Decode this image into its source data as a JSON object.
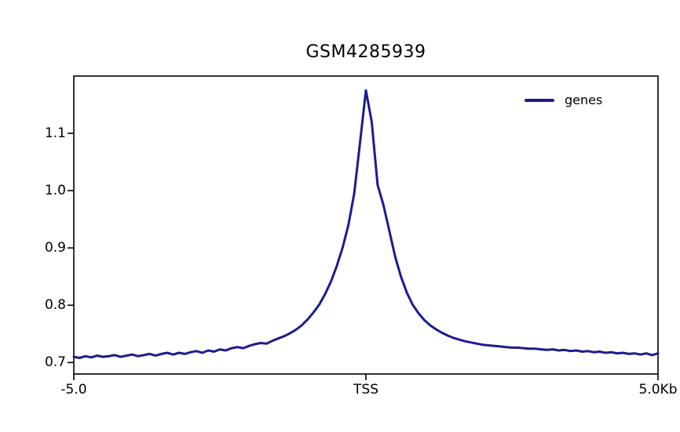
{
  "chart_data": {
    "type": "line",
    "title": "GSM4285939",
    "xlabel": "",
    "ylabel": "",
    "xlim": [
      -5.0,
      5.0
    ],
    "ylim": [
      0.68,
      1.2
    ],
    "grid": false,
    "legend_position": "upper-right",
    "xticks": [
      {
        "pos": -5.0,
        "label": "-5.0"
      },
      {
        "pos": 0.0,
        "label": "TSS"
      },
      {
        "pos": 5.0,
        "label": "5.0Kb"
      }
    ],
    "yticks": [
      {
        "pos": 0.7,
        "label": "0.7"
      },
      {
        "pos": 0.8,
        "label": "0.8"
      },
      {
        "pos": 0.9,
        "label": "0.9"
      },
      {
        "pos": 1.0,
        "label": "1.0"
      },
      {
        "pos": 1.1,
        "label": "1.1"
      }
    ],
    "series": [
      {
        "name": "genes",
        "color": "#1c1c8e",
        "x": [
          -5.0,
          -4.9,
          -4.8,
          -4.7,
          -4.6,
          -4.5,
          -4.4,
          -4.3,
          -4.2,
          -4.1,
          -4.0,
          -3.9,
          -3.8,
          -3.7,
          -3.6,
          -3.5,
          -3.4,
          -3.3,
          -3.2,
          -3.1,
          -3.0,
          -2.9,
          -2.8,
          -2.7,
          -2.6,
          -2.5,
          -2.4,
          -2.3,
          -2.2,
          -2.1,
          -2.0,
          -1.9,
          -1.8,
          -1.7,
          -1.6,
          -1.5,
          -1.4,
          -1.3,
          -1.2,
          -1.1,
          -1.0,
          -0.9,
          -0.8,
          -0.7,
          -0.6,
          -0.5,
          -0.4,
          -0.3,
          -0.2,
          -0.1,
          0.0,
          0.1,
          0.2,
          0.3,
          0.4,
          0.5,
          0.6,
          0.7,
          0.8,
          0.9,
          1.0,
          1.1,
          1.2,
          1.3,
          1.4,
          1.5,
          1.6,
          1.7,
          1.8,
          1.9,
          2.0,
          2.1,
          2.2,
          2.3,
          2.4,
          2.5,
          2.6,
          2.7,
          2.8,
          2.9,
          3.0,
          3.1,
          3.2,
          3.3,
          3.4,
          3.5,
          3.6,
          3.7,
          3.8,
          3.9,
          4.0,
          4.1,
          4.2,
          4.3,
          4.4,
          4.5,
          4.6,
          4.7,
          4.8,
          4.9,
          5.0
        ],
        "values": [
          0.71,
          0.708,
          0.711,
          0.709,
          0.712,
          0.71,
          0.711,
          0.713,
          0.71,
          0.712,
          0.714,
          0.711,
          0.713,
          0.715,
          0.712,
          0.715,
          0.717,
          0.714,
          0.717,
          0.715,
          0.718,
          0.72,
          0.717,
          0.721,
          0.719,
          0.723,
          0.721,
          0.725,
          0.727,
          0.725,
          0.729,
          0.732,
          0.734,
          0.733,
          0.738,
          0.742,
          0.746,
          0.751,
          0.757,
          0.765,
          0.775,
          0.787,
          0.801,
          0.819,
          0.841,
          0.868,
          0.9,
          0.94,
          0.995,
          1.085,
          1.175,
          1.12,
          1.01,
          0.975,
          0.93,
          0.885,
          0.85,
          0.822,
          0.801,
          0.786,
          0.774,
          0.765,
          0.758,
          0.752,
          0.747,
          0.743,
          0.74,
          0.737,
          0.735,
          0.733,
          0.731,
          0.73,
          0.729,
          0.728,
          0.727,
          0.726,
          0.726,
          0.725,
          0.724,
          0.724,
          0.723,
          0.722,
          0.723,
          0.721,
          0.722,
          0.72,
          0.721,
          0.719,
          0.72,
          0.718,
          0.719,
          0.717,
          0.718,
          0.716,
          0.717,
          0.715,
          0.716,
          0.714,
          0.716,
          0.713,
          0.716
        ]
      }
    ]
  }
}
